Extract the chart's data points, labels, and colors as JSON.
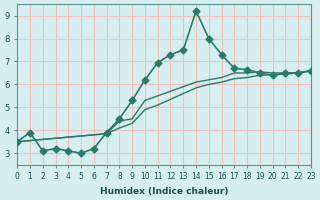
{
  "xlabel": "Humidex (Indice chaleur)",
  "ylabel": "",
  "background_color": "#d6eeee",
  "grid_color": "#f0c0c0",
  "line_color": "#2a7a6a",
  "xlim": [
    0,
    23
  ],
  "ylim": [
    2.5,
    9.5
  ],
  "xticks": [
    0,
    1,
    2,
    3,
    4,
    5,
    6,
    7,
    8,
    9,
    10,
    11,
    12,
    13,
    14,
    15,
    16,
    17,
    18,
    19,
    20,
    21,
    22,
    23
  ],
  "yticks": [
    3,
    4,
    5,
    6,
    7,
    8,
    9
  ],
  "lines": [
    {
      "x": [
        0,
        1,
        2,
        3,
        4,
        5,
        6,
        7,
        8,
        9,
        10,
        11,
        12,
        13,
        14,
        15,
        16,
        17,
        18,
        19,
        20,
        21,
        22,
        23
      ],
      "y": [
        3.5,
        3.9,
        3.1,
        3.2,
        3.1,
        3.0,
        3.2,
        3.9,
        4.5,
        5.3,
        6.2,
        6.95,
        7.3,
        7.5,
        9.2,
        8.0,
        7.3,
        6.7,
        6.65,
        6.5,
        6.4,
        6.5,
        6.5,
        6.6
      ],
      "marker": "D",
      "markersize": 3.5,
      "linewidth": 1.2
    },
    {
      "x": [
        0,
        7,
        8,
        9,
        10,
        11,
        12,
        13,
        14,
        15,
        16,
        17,
        18,
        19,
        20,
        21,
        22,
        23
      ],
      "y": [
        3.5,
        3.85,
        4.4,
        4.5,
        5.3,
        5.5,
        5.7,
        5.9,
        6.1,
        6.2,
        6.3,
        6.5,
        6.5,
        6.55,
        6.5,
        6.5,
        6.5,
        6.6
      ],
      "marker": null,
      "markersize": 0,
      "linewidth": 1.0
    },
    {
      "x": [
        0,
        7,
        8,
        9,
        10,
        11,
        12,
        13,
        14,
        15,
        16,
        17,
        18,
        19,
        20,
        21,
        22,
        23
      ],
      "y": [
        3.5,
        3.85,
        4.1,
        4.3,
        4.9,
        5.1,
        5.35,
        5.6,
        5.85,
        6.0,
        6.1,
        6.25,
        6.3,
        6.4,
        6.42,
        6.45,
        6.5,
        6.6
      ],
      "marker": null,
      "markersize": 0,
      "linewidth": 1.0
    }
  ]
}
